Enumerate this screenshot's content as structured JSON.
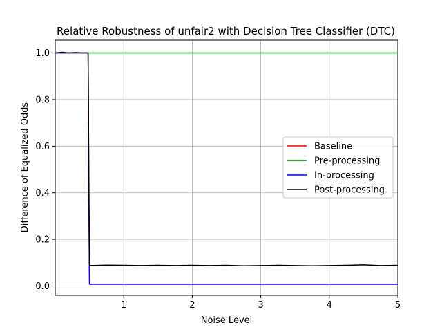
{
  "chart_data": {
    "type": "line",
    "title": "Relative Robustness of unfair2 with Decision Tree Classifier (DTC)",
    "xlabel": "Noise Level",
    "ylabel": "Difference of Equalized Odds",
    "xlim": [
      0.0,
      5.0
    ],
    "ylim": [
      -0.04,
      1.055
    ],
    "xticks": [
      1,
      2,
      3,
      4,
      5
    ],
    "yticks": [
      0.0,
      0.2,
      0.4,
      0.6,
      0.8,
      1.0
    ],
    "xtick_labels": [
      "1",
      "2",
      "3",
      "4",
      "5"
    ],
    "ytick_labels": [
      "0.0",
      "0.2",
      "0.4",
      "0.6",
      "0.8",
      "1.0"
    ],
    "grid": true,
    "legend_position": "center-right",
    "series": [
      {
        "name": "Baseline",
        "color": "#ff0000",
        "x": [
          0.0,
          0.48,
          0.49,
          0.5,
          5.0
        ],
        "y": [
          1.0,
          1.0,
          0.4,
          0.008,
          0.008
        ]
      },
      {
        "name": "Pre-processing",
        "color": "#008000",
        "x": [
          0.0,
          5.0
        ],
        "y": [
          1.0,
          1.0
        ]
      },
      {
        "name": "In-processing",
        "color": "#0000ff",
        "x": [
          0.0,
          0.48,
          0.49,
          0.5,
          5.0
        ],
        "y": [
          1.0,
          1.0,
          0.4,
          0.008,
          0.008
        ]
      },
      {
        "name": "Post-processing",
        "color": "#000000",
        "x": [
          0.0,
          0.1,
          0.2,
          0.3,
          0.4,
          0.48,
          0.49,
          0.5,
          0.75,
          1.0,
          1.25,
          1.5,
          1.75,
          2.0,
          2.25,
          2.5,
          2.75,
          3.0,
          3.25,
          3.5,
          3.75,
          4.0,
          4.25,
          4.5,
          4.75,
          5.0
        ],
        "y": [
          1.0,
          1.003,
          1.0,
          1.002,
          1.0,
          1.0,
          0.5,
          0.088,
          0.09,
          0.089,
          0.088,
          0.089,
          0.088,
          0.089,
          0.088,
          0.089,
          0.087,
          0.088,
          0.089,
          0.088,
          0.087,
          0.088,
          0.089,
          0.091,
          0.088,
          0.089
        ]
      }
    ]
  }
}
